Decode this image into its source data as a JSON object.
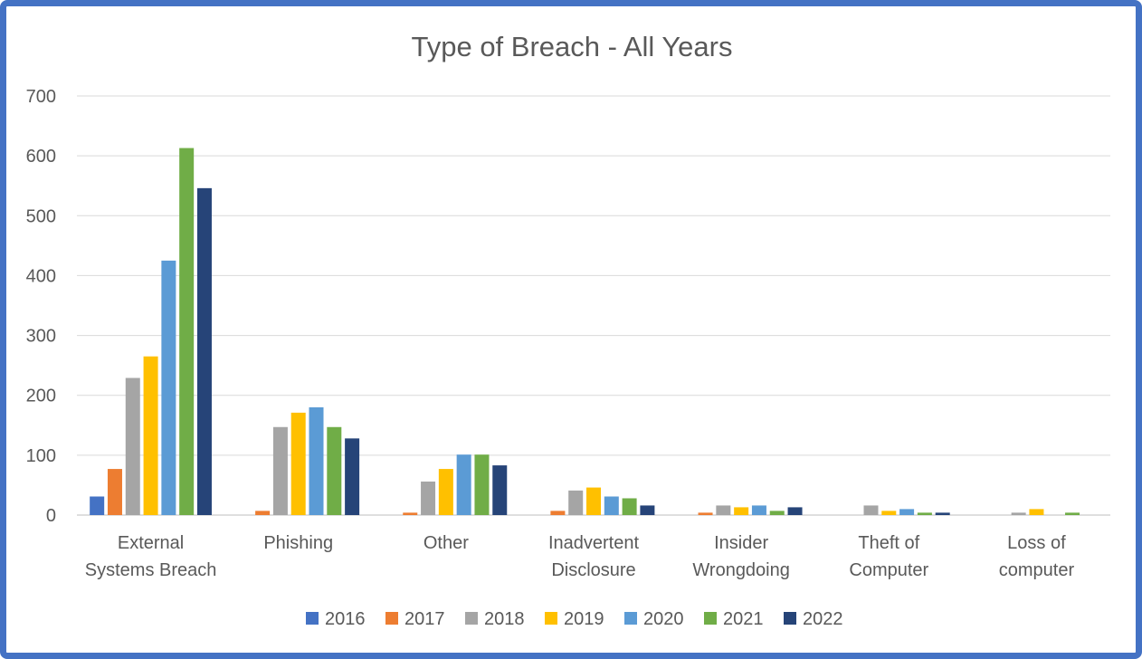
{
  "chart_data": {
    "type": "bar",
    "title": "Type of Breach - All Years",
    "xlabel": "",
    "ylabel": "",
    "ylim": [
      0,
      700
    ],
    "yticks": [
      0,
      100,
      200,
      300,
      400,
      500,
      600,
      700
    ],
    "grid": true,
    "legend_position": "bottom",
    "categories": [
      [
        "External",
        "Systems Breach"
      ],
      [
        "Phishing"
      ],
      [
        "Other"
      ],
      [
        "Inadvertent",
        "Disclosure"
      ],
      [
        "Insider",
        "Wrongdoing"
      ],
      [
        "Theft of",
        "Computer"
      ],
      [
        "Loss of",
        "computer"
      ]
    ],
    "series": [
      {
        "name": "2016",
        "color": "#4472c4",
        "values": [
          31,
          0,
          0,
          0,
          0,
          0,
          0
        ]
      },
      {
        "name": "2017",
        "color": "#ed7d31",
        "values": [
          77,
          7,
          4,
          7,
          4,
          0,
          0
        ]
      },
      {
        "name": "2018",
        "color": "#a5a5a5",
        "values": [
          229,
          147,
          56,
          41,
          16,
          16,
          4
        ]
      },
      {
        "name": "2019",
        "color": "#ffc000",
        "values": [
          265,
          171,
          77,
          46,
          13,
          7,
          10
        ]
      },
      {
        "name": "2020",
        "color": "#5b9bd5",
        "values": [
          425,
          180,
          101,
          31,
          16,
          10,
          0
        ]
      },
      {
        "name": "2021",
        "color": "#70ad47",
        "values": [
          613,
          147,
          101,
          28,
          7,
          4,
          4
        ]
      },
      {
        "name": "2022",
        "color": "#264478",
        "values": [
          546,
          128,
          83,
          16,
          13,
          4,
          0
        ]
      }
    ]
  }
}
